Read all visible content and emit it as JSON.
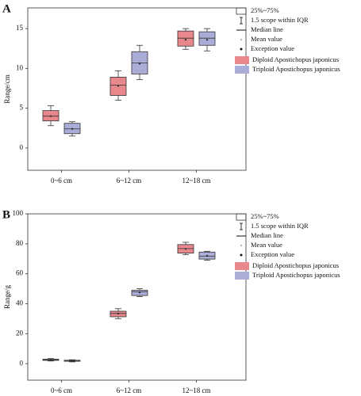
{
  "chart_data": [
    {
      "type": "box",
      "panel_label": "A",
      "y_label": "Range/cm",
      "categories": [
        "0~6 cm",
        "6~12 cm",
        "12~18 cm"
      ],
      "ylim": [
        -2.8,
        17.6
      ],
      "yticks": [
        0,
        5,
        10,
        15
      ],
      "legend": [
        "25%~75%",
        "1.5 scope within IQR",
        "Median line",
        "Mean value",
        "Exception value"
      ],
      "series": [
        {
          "name": "Diploid Apostichopus japonicus",
          "color": "#e8878c",
          "values": [
            {
              "low": 2.8,
              "q1": 3.4,
              "median": 4.0,
              "q3": 4.7,
              "high": 5.3,
              "mean": 4.0
            },
            {
              "low": 6.0,
              "q1": 6.6,
              "median": 7.9,
              "q3": 8.9,
              "high": 9.7,
              "mean": 7.8
            },
            {
              "low": 12.4,
              "q1": 12.8,
              "median": 13.8,
              "q3": 14.7,
              "high": 15.0,
              "mean": 13.6
            }
          ]
        },
        {
          "name": "Triploid Apostichopus japonicus",
          "color": "#aaadd8",
          "values": [
            {
              "low": 1.5,
              "q1": 1.8,
              "median": 2.4,
              "q3": 3.1,
              "high": 3.3,
              "mean": 2.4
            },
            {
              "low": 8.6,
              "q1": 9.3,
              "median": 10.7,
              "q3": 12.1,
              "high": 12.9,
              "mean": 10.6
            },
            {
              "low": 12.2,
              "q1": 12.9,
              "median": 13.8,
              "q3": 14.6,
              "high": 15.0,
              "mean": 13.6
            }
          ]
        }
      ]
    },
    {
      "type": "box",
      "panel_label": "B",
      "y_label": "Range/g",
      "categories": [
        "0~6 cm",
        "6~12 cm",
        "12~18 cm"
      ],
      "ylim": [
        -11,
        100
      ],
      "yticks": [
        0,
        20,
        40,
        60,
        80,
        100
      ],
      "legend": [
        "25%~75%",
        "1.5 scope within IQR",
        "Median line",
        "Mean value",
        "Exception value"
      ],
      "series": [
        {
          "name": "Diploid Apostichopus japonicus",
          "color": "#e8878c",
          "values": [
            {
              "low": 1.8,
              "q1": 2.2,
              "median": 2.6,
              "q3": 3.0,
              "high": 3.4,
              "mean": 2.6
            },
            {
              "low": 30,
              "q1": 31.3,
              "median": 33.5,
              "q3": 35,
              "high": 36.7,
              "mean": 33.4
            },
            {
              "low": 72.8,
              "q1": 73.8,
              "median": 76.8,
              "q3": 79.5,
              "high": 81,
              "mean": 76.6
            }
          ]
        },
        {
          "name": "Triploid Apostichopus japonicus",
          "color": "#aaadd8",
          "values": [
            {
              "low": 1.2,
              "q1": 1.6,
              "median": 2.0,
              "q3": 2.3,
              "high": 2.6,
              "mean": 2.0
            },
            {
              "low": 44.8,
              "q1": 45.5,
              "median": 48,
              "q3": 49,
              "high": 50,
              "mean": 47.6
            },
            {
              "low": 69,
              "q1": 69.8,
              "median": 71.8,
              "q3": 74.5,
              "high": 75,
              "mean": 72
            }
          ]
        }
      ]
    }
  ]
}
